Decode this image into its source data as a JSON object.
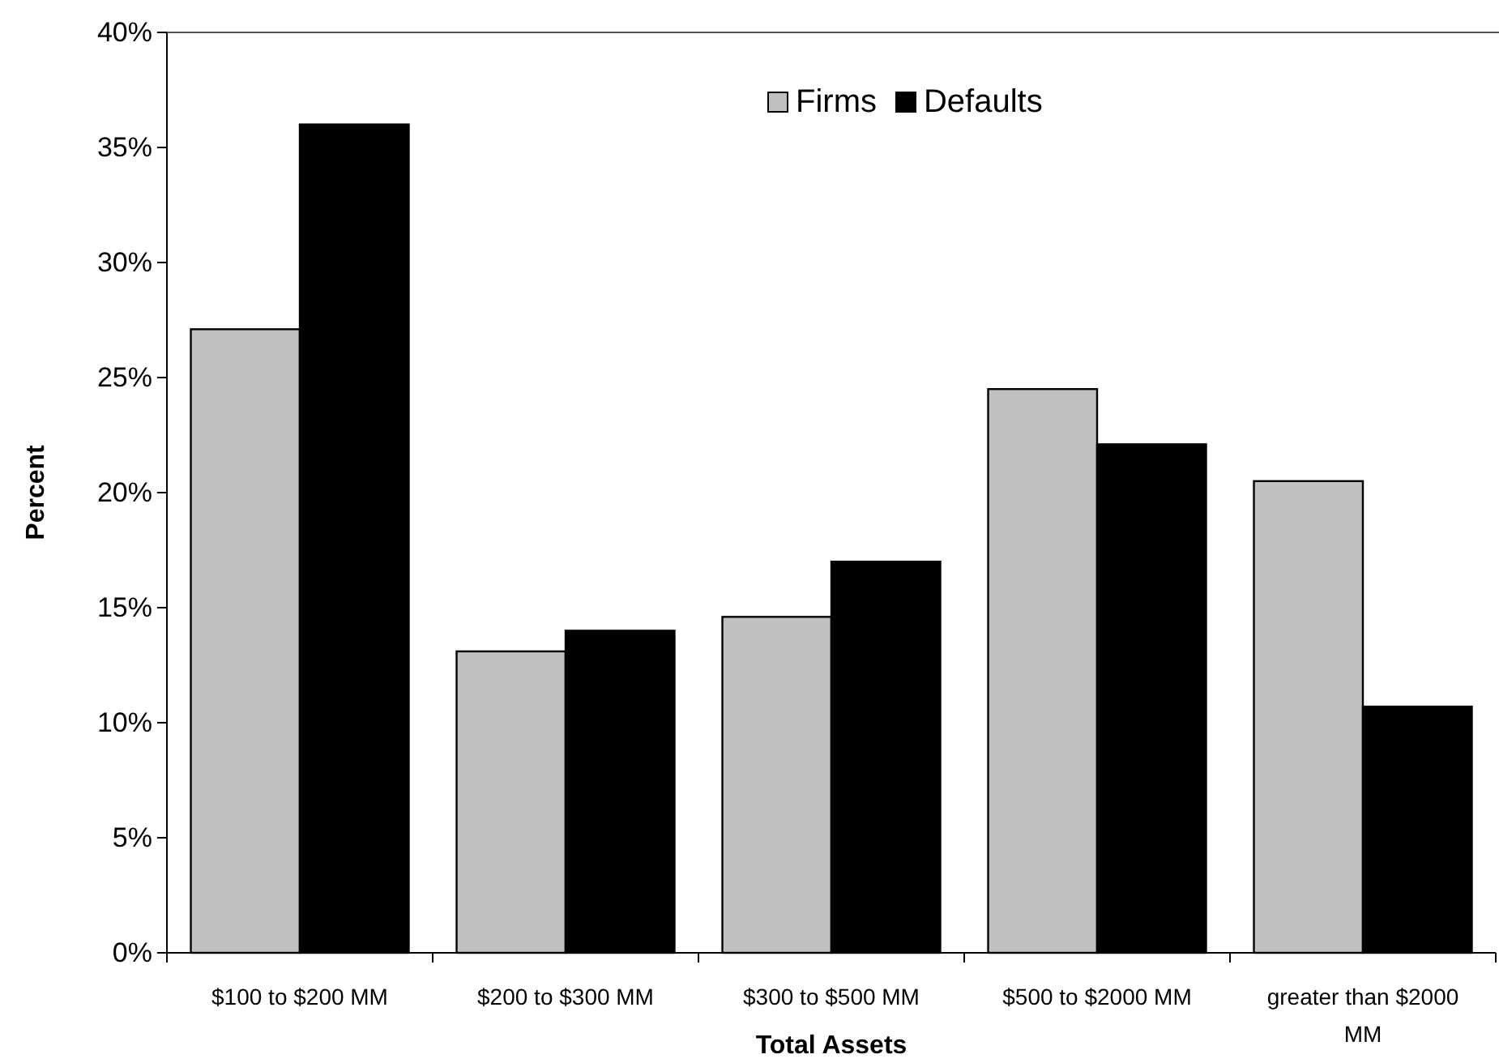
{
  "chart_data": {
    "type": "bar",
    "xlabel": "Total Assets",
    "ylabel": "Percent",
    "categories": [
      "$100 to $200 MM",
      "$200 to $300 MM",
      "$300 to $500 MM",
      "$500 to $2000 MM",
      "greater than $2000 MM"
    ],
    "series": [
      {
        "name": "Firms",
        "color": "#c0c0c0",
        "values": [
          27.1,
          13.1,
          14.6,
          24.5,
          20.5
        ]
      },
      {
        "name": "Defaults",
        "color": "#000000",
        "values": [
          36.0,
          14.0,
          17.0,
          22.1,
          10.7
        ]
      }
    ],
    "ylim": [
      0,
      40
    ],
    "yticks": [
      {
        "value": 0,
        "label": "0%"
      },
      {
        "value": 5,
        "label": "5%"
      },
      {
        "value": 10,
        "label": "10%"
      },
      {
        "value": 15,
        "label": "15%"
      },
      {
        "value": 20,
        "label": "20%"
      },
      {
        "value": 25,
        "label": "25%"
      },
      {
        "value": 30,
        "label": "30%"
      },
      {
        "value": 35,
        "label": "35%"
      },
      {
        "value": 40,
        "label": "40%"
      }
    ],
    "grid": false,
    "legend": "top"
  }
}
